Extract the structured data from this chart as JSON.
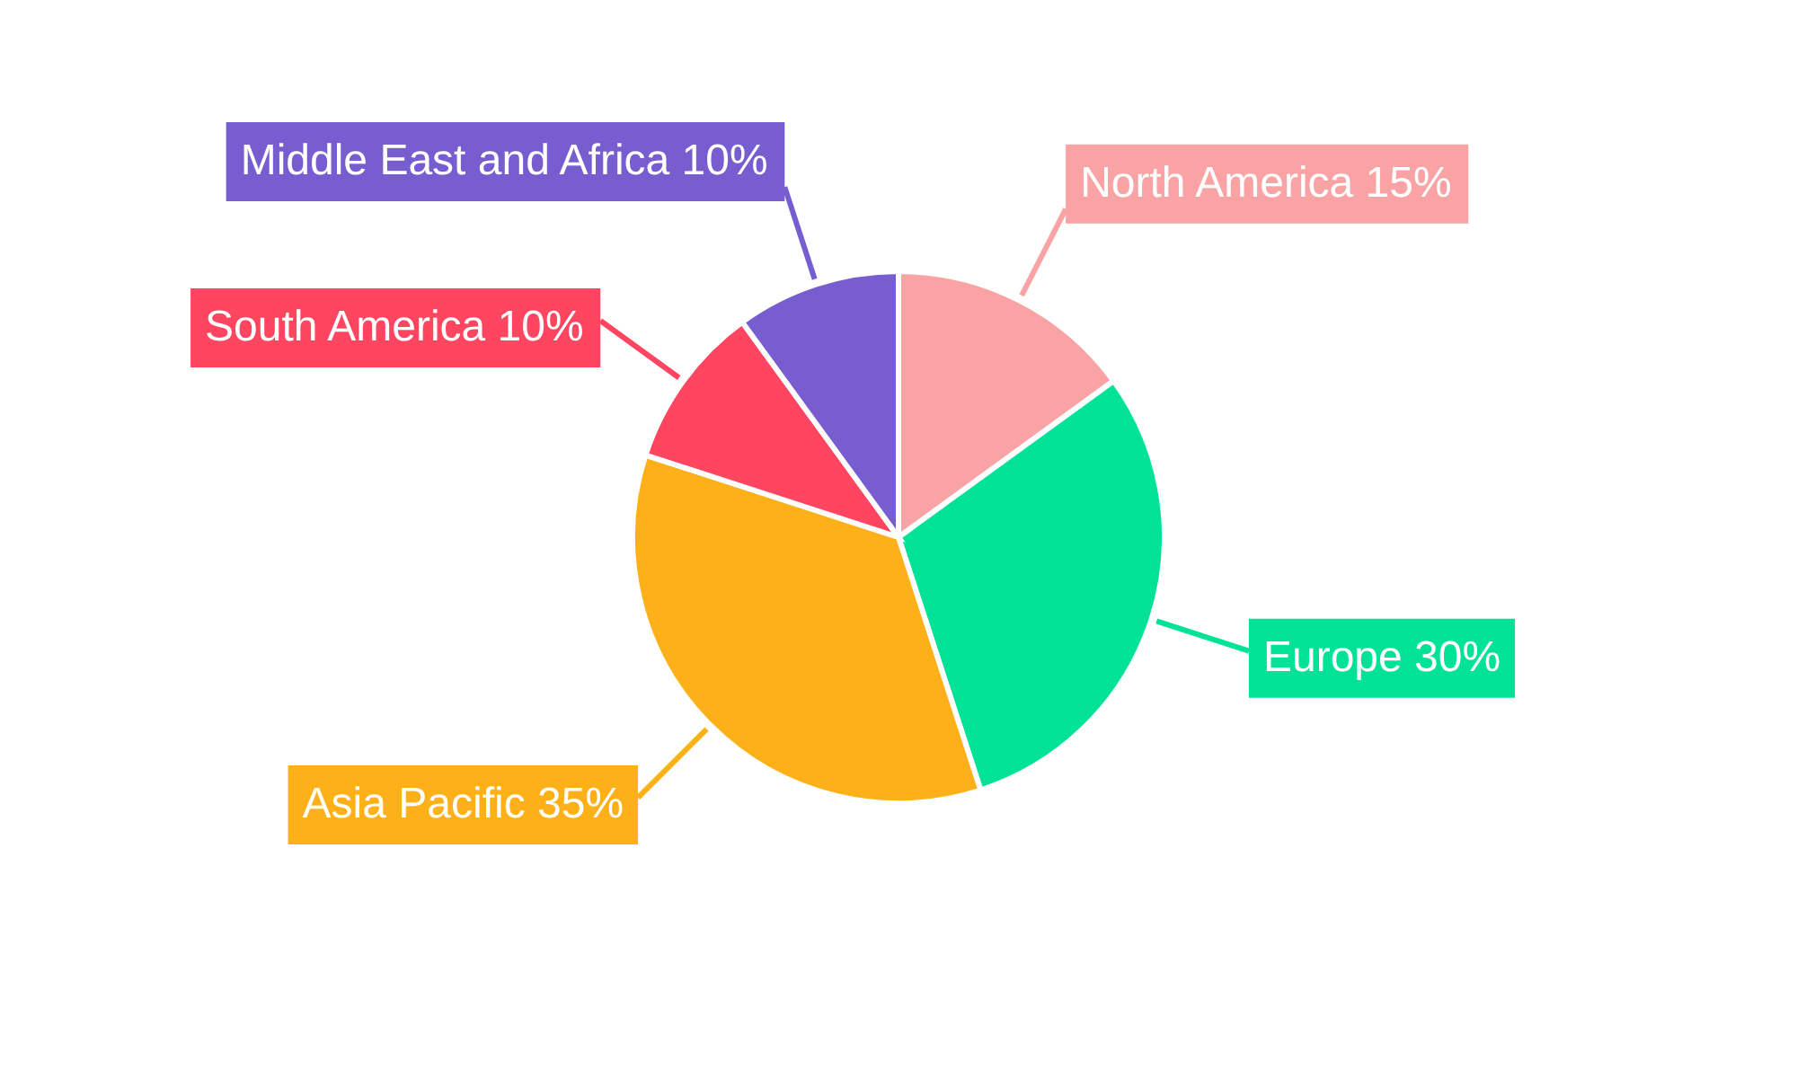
{
  "chart_data": {
    "type": "pie",
    "categories": [
      "North America",
      "Europe",
      "Asia Pacific",
      "South America",
      "Middle East and Africa"
    ],
    "values": [
      15,
      30,
      35,
      10,
      10
    ],
    "value_labels": [
      "15%",
      "30%",
      "35%",
      "10%",
      "10%"
    ],
    "colors": [
      "#f9a3a4",
      "#00e396",
      "#feb019",
      "#ff4560",
      "#775dd0"
    ]
  }
}
